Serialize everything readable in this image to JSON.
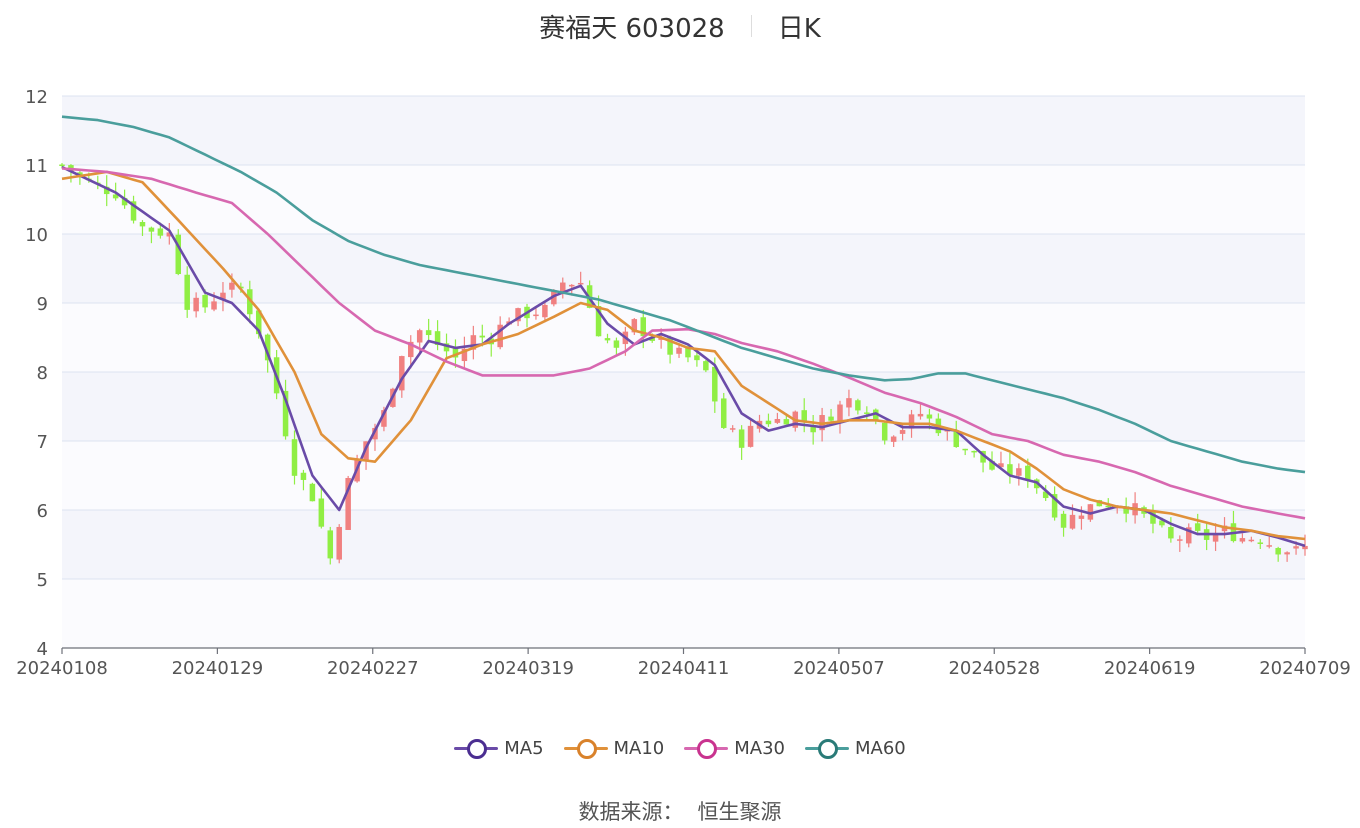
{
  "header": {
    "stock_name": "赛福天 603028",
    "period": "日K"
  },
  "footer": {
    "source_label": "数据来源：",
    "source_name": "恒生聚源"
  },
  "chart_data": {
    "type": "candlestick",
    "x_ticks": [
      "20240108",
      "20240129",
      "20240227",
      "20240319",
      "20240411",
      "20240507",
      "20240528",
      "20240619",
      "20240709"
    ],
    "y_ticks": [
      4,
      5,
      6,
      7,
      8,
      9,
      10,
      11,
      12
    ],
    "ylim": [
      4,
      12
    ],
    "grid": true,
    "legend_position": "bottom",
    "up_color": "#f08080",
    "down_color": "#90ee44",
    "series": [
      {
        "name": "MA5",
        "color": "#6a4ba8",
        "legend_color": "#4b2e91",
        "anchors": [
          [
            0,
            10.97
          ],
          [
            6,
            10.6
          ],
          [
            12,
            10.05
          ],
          [
            16,
            9.15
          ],
          [
            19,
            9.0
          ],
          [
            22,
            8.6
          ],
          [
            25,
            7.6
          ],
          [
            28,
            6.5
          ],
          [
            31,
            6.0
          ],
          [
            34,
            6.9
          ],
          [
            38,
            7.9
          ],
          [
            41,
            8.45
          ],
          [
            44,
            8.35
          ],
          [
            47,
            8.4
          ],
          [
            50,
            8.7
          ],
          [
            55,
            9.1
          ],
          [
            58,
            9.25
          ],
          [
            61,
            8.7
          ],
          [
            64,
            8.4
          ],
          [
            67,
            8.55
          ],
          [
            70,
            8.4
          ],
          [
            73,
            8.1
          ],
          [
            76,
            7.4
          ],
          [
            79,
            7.15
          ],
          [
            82,
            7.25
          ],
          [
            85,
            7.2
          ],
          [
            88,
            7.3
          ],
          [
            91,
            7.4
          ],
          [
            94,
            7.2
          ],
          [
            97,
            7.2
          ],
          [
            100,
            7.15
          ],
          [
            103,
            6.8
          ],
          [
            106,
            6.5
          ],
          [
            109,
            6.4
          ],
          [
            112,
            6.05
          ],
          [
            115,
            5.95
          ],
          [
            118,
            6.05
          ],
          [
            121,
            6.0
          ],
          [
            124,
            5.8
          ],
          [
            127,
            5.65
          ],
          [
            130,
            5.65
          ],
          [
            133,
            5.7
          ],
          [
            136,
            5.6
          ],
          [
            139,
            5.48
          ]
        ]
      },
      {
        "name": "MA10",
        "color": "#e0913a",
        "legend_color": "#d9822b",
        "anchors": [
          [
            0,
            10.8
          ],
          [
            5,
            10.9
          ],
          [
            9,
            10.75
          ],
          [
            13,
            10.2
          ],
          [
            18,
            9.5
          ],
          [
            22,
            8.9
          ],
          [
            26,
            8.0
          ],
          [
            29,
            7.1
          ],
          [
            32,
            6.75
          ],
          [
            35,
            6.7
          ],
          [
            39,
            7.3
          ],
          [
            43,
            8.2
          ],
          [
            47,
            8.4
          ],
          [
            51,
            8.55
          ],
          [
            55,
            8.8
          ],
          [
            58,
            9.0
          ],
          [
            61,
            8.9
          ],
          [
            64,
            8.6
          ],
          [
            67,
            8.5
          ],
          [
            70,
            8.35
          ],
          [
            73,
            8.3
          ],
          [
            76,
            7.8
          ],
          [
            79,
            7.55
          ],
          [
            82,
            7.3
          ],
          [
            85,
            7.25
          ],
          [
            88,
            7.3
          ],
          [
            91,
            7.3
          ],
          [
            94,
            7.25
          ],
          [
            97,
            7.25
          ],
          [
            100,
            7.15
          ],
          [
            103,
            7.0
          ],
          [
            106,
            6.85
          ],
          [
            109,
            6.6
          ],
          [
            112,
            6.3
          ],
          [
            115,
            6.15
          ],
          [
            118,
            6.05
          ],
          [
            121,
            6.0
          ],
          [
            124,
            5.95
          ],
          [
            127,
            5.85
          ],
          [
            130,
            5.75
          ],
          [
            133,
            5.7
          ],
          [
            136,
            5.62
          ],
          [
            139,
            5.58
          ]
        ]
      },
      {
        "name": "MA30",
        "color": "#d768b0",
        "legend_color": "#c9338f",
        "anchors": [
          [
            0,
            10.95
          ],
          [
            5,
            10.9
          ],
          [
            10,
            10.8
          ],
          [
            15,
            10.6
          ],
          [
            19,
            10.45
          ],
          [
            23,
            10.0
          ],
          [
            27,
            9.5
          ],
          [
            31,
            9.0
          ],
          [
            35,
            8.6
          ],
          [
            39,
            8.4
          ],
          [
            43,
            8.15
          ],
          [
            47,
            7.95
          ],
          [
            51,
            7.95
          ],
          [
            55,
            7.95
          ],
          [
            59,
            8.05
          ],
          [
            63,
            8.3
          ],
          [
            66,
            8.6
          ],
          [
            70,
            8.62
          ],
          [
            73,
            8.55
          ],
          [
            76,
            8.42
          ],
          [
            80,
            8.3
          ],
          [
            84,
            8.12
          ],
          [
            88,
            7.92
          ],
          [
            92,
            7.7
          ],
          [
            96,
            7.55
          ],
          [
            100,
            7.35
          ],
          [
            104,
            7.1
          ],
          [
            108,
            7.0
          ],
          [
            112,
            6.8
          ],
          [
            116,
            6.7
          ],
          [
            120,
            6.55
          ],
          [
            124,
            6.35
          ],
          [
            128,
            6.2
          ],
          [
            132,
            6.05
          ],
          [
            136,
            5.95
          ],
          [
            139,
            5.88
          ]
        ]
      },
      {
        "name": "MA60",
        "color": "#4a9e9c",
        "legend_color": "#2a7b78",
        "anchors": [
          [
            0,
            11.7
          ],
          [
            4,
            11.65
          ],
          [
            8,
            11.55
          ],
          [
            12,
            11.4
          ],
          [
            16,
            11.15
          ],
          [
            20,
            10.9
          ],
          [
            24,
            10.6
          ],
          [
            28,
            10.2
          ],
          [
            32,
            9.9
          ],
          [
            36,
            9.7
          ],
          [
            40,
            9.55
          ],
          [
            44,
            9.45
          ],
          [
            48,
            9.35
          ],
          [
            52,
            9.25
          ],
          [
            56,
            9.15
          ],
          [
            60,
            9.05
          ],
          [
            64,
            8.9
          ],
          [
            68,
            8.75
          ],
          [
            72,
            8.55
          ],
          [
            76,
            8.35
          ],
          [
            80,
            8.2
          ],
          [
            84,
            8.05
          ],
          [
            88,
            7.95
          ],
          [
            92,
            7.88
          ],
          [
            95,
            7.9
          ],
          [
            98,
            7.98
          ],
          [
            101,
            7.98
          ],
          [
            104,
            7.88
          ],
          [
            108,
            7.75
          ],
          [
            112,
            7.62
          ],
          [
            116,
            7.45
          ],
          [
            120,
            7.25
          ],
          [
            124,
            7.0
          ],
          [
            128,
            6.85
          ],
          [
            132,
            6.7
          ],
          [
            136,
            6.6
          ],
          [
            139,
            6.55
          ]
        ]
      }
    ],
    "candle_anchors": [
      [
        0,
        11.0
      ],
      [
        3,
        10.75
      ],
      [
        6,
        10.6
      ],
      [
        9,
        10.1
      ],
      [
        12,
        10.0
      ],
      [
        14,
        9.0
      ],
      [
        16,
        8.95
      ],
      [
        18,
        9.2
      ],
      [
        20,
        9.2
      ],
      [
        22,
        8.6
      ],
      [
        24,
        7.7
      ],
      [
        26,
        6.6
      ],
      [
        28,
        6.2
      ],
      [
        30,
        5.3
      ],
      [
        32,
        6.4
      ],
      [
        34,
        7.0
      ],
      [
        36,
        7.4
      ],
      [
        38,
        8.3
      ],
      [
        40,
        8.6
      ],
      [
        42,
        8.4
      ],
      [
        44,
        8.2
      ],
      [
        46,
        8.5
      ],
      [
        48,
        8.5
      ],
      [
        50,
        8.8
      ],
      [
        52,
        8.85
      ],
      [
        54,
        8.9
      ],
      [
        56,
        9.3
      ],
      [
        58,
        9.3
      ],
      [
        60,
        8.6
      ],
      [
        62,
        8.3
      ],
      [
        64,
        8.7
      ],
      [
        66,
        8.5
      ],
      [
        68,
        8.3
      ],
      [
        70,
        8.2
      ],
      [
        72,
        8.0
      ],
      [
        74,
        7.2
      ],
      [
        76,
        7.0
      ],
      [
        78,
        7.3
      ],
      [
        80,
        7.3
      ],
      [
        82,
        7.4
      ],
      [
        84,
        7.2
      ],
      [
        86,
        7.4
      ],
      [
        88,
        7.6
      ],
      [
        90,
        7.5
      ],
      [
        92,
        7.1
      ],
      [
        94,
        7.2
      ],
      [
        96,
        7.4
      ],
      [
        98,
        7.2
      ],
      [
        100,
        7.0
      ],
      [
        102,
        6.8
      ],
      [
        104,
        6.6
      ],
      [
        106,
        6.55
      ],
      [
        108,
        6.5
      ],
      [
        110,
        6.2
      ],
      [
        112,
        5.8
      ],
      [
        114,
        6.0
      ],
      [
        116,
        6.1
      ],
      [
        118,
        6.1
      ],
      [
        120,
        6.0
      ],
      [
        122,
        5.8
      ],
      [
        124,
        5.55
      ],
      [
        126,
        5.65
      ],
      [
        128,
        5.6
      ],
      [
        130,
        5.7
      ],
      [
        132,
        5.6
      ],
      [
        134,
        5.6
      ],
      [
        136,
        5.45
      ],
      [
        138,
        5.4
      ],
      [
        139,
        5.45
      ]
    ]
  }
}
